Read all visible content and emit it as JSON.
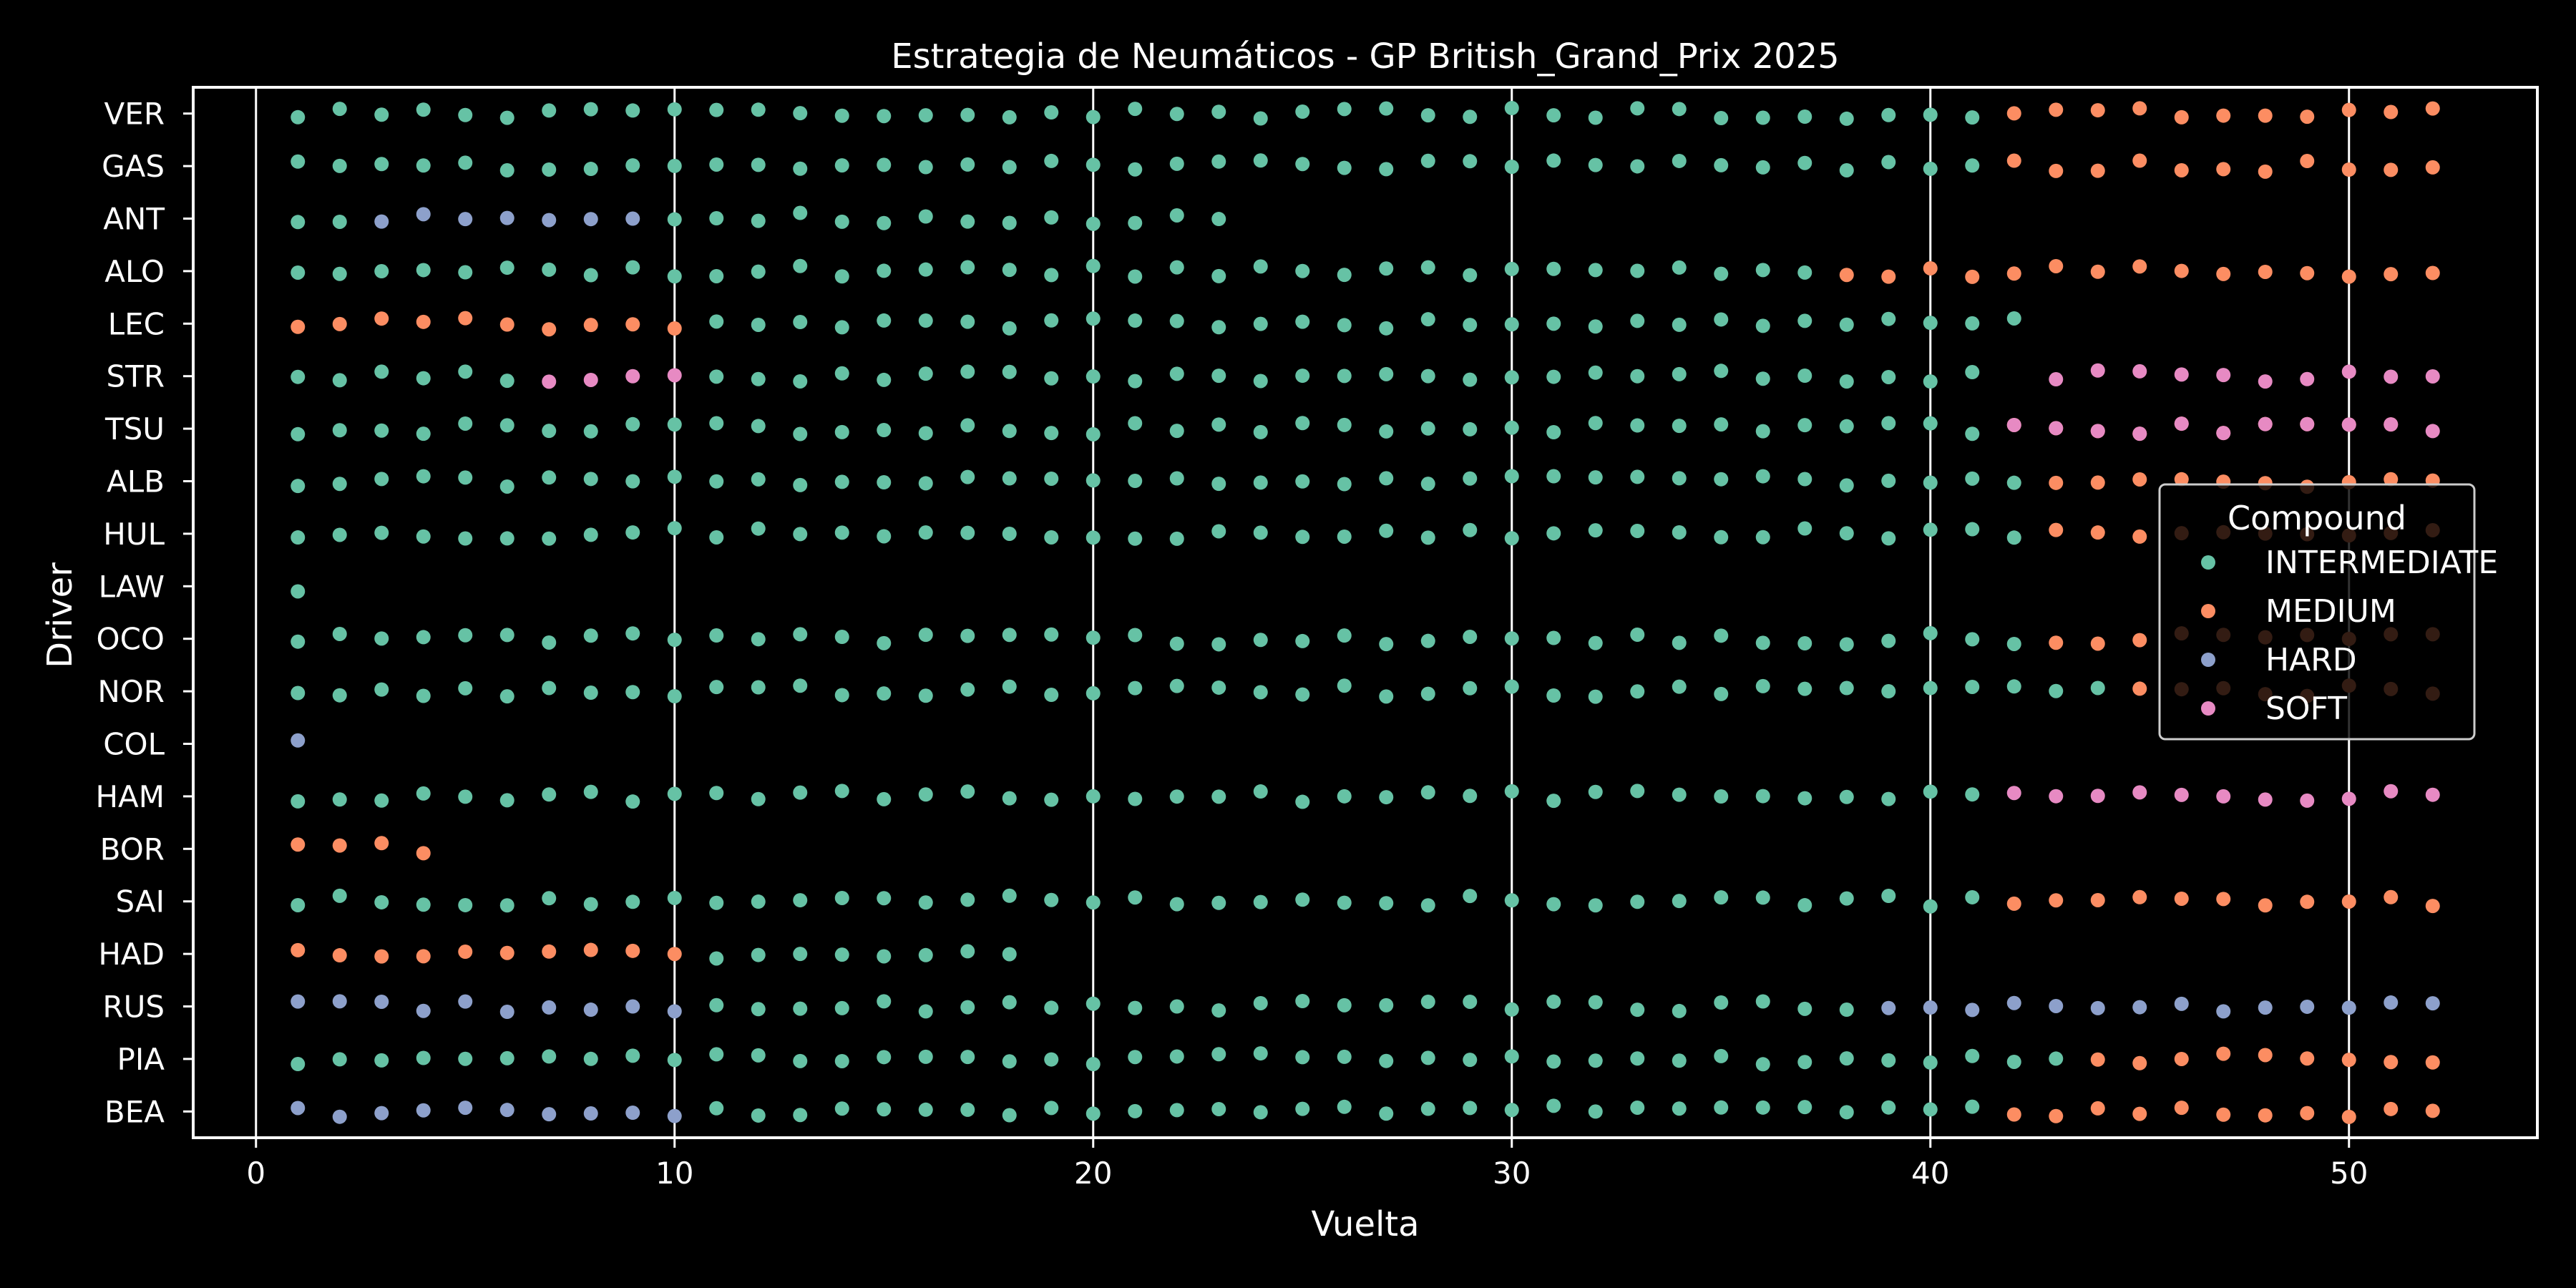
{
  "chart_data": {
    "type": "scatter",
    "title": "Estrategia de Neumáticos - GP British_Grand_Prix 2025",
    "xlabel": "Vuelta",
    "ylabel": "Driver",
    "xlim": [
      -1.5,
      54.5
    ],
    "xticks": [
      0,
      10,
      20,
      30,
      40,
      50
    ],
    "grid_x": true,
    "legend_title": "Compound",
    "legend_position": "right",
    "drivers": [
      "VER",
      "GAS",
      "ANT",
      "ALO",
      "LEC",
      "STR",
      "TSU",
      "ALB",
      "HUL",
      "LAW",
      "OCO",
      "NOR",
      "COL",
      "HAM",
      "BOR",
      "SAI",
      "HAD",
      "RUS",
      "PIA",
      "BEA"
    ],
    "compound_colors": {
      "INTERMEDIATE": "#66c2a5",
      "MEDIUM": "#fc8d62",
      "HARD": "#8da0cb",
      "SOFT": "#e78ac3"
    },
    "series": [
      {
        "name": "INTERMEDIATE",
        "points": [
          [
            "VER",
            1,
            41
          ],
          [
            "GAS",
            1,
            41
          ],
          [
            "ANT",
            1,
            2
          ],
          [
            "ANT",
            10,
            23
          ],
          [
            "ALO",
            1,
            37
          ],
          [
            "LEC",
            11,
            42
          ],
          [
            "STR",
            1,
            6
          ],
          [
            "STR",
            11,
            41
          ],
          [
            "TSU",
            1,
            41
          ],
          [
            "ALB",
            1,
            42
          ],
          [
            "HUL",
            1,
            42
          ],
          [
            "LAW",
            1,
            1
          ],
          [
            "OCO",
            1,
            42
          ],
          [
            "NOR",
            1,
            44
          ],
          [
            "HAM",
            1,
            41
          ],
          [
            "SAI",
            1,
            41
          ],
          [
            "HAD",
            11,
            18
          ],
          [
            "RUS",
            11,
            38
          ],
          [
            "PIA",
            1,
            43
          ],
          [
            "BEA",
            11,
            41
          ]
        ]
      },
      {
        "name": "MEDIUM",
        "points": [
          [
            "VER",
            42,
            52
          ],
          [
            "GAS",
            42,
            52
          ],
          [
            "ALO",
            38,
            52
          ],
          [
            "LEC",
            1,
            10
          ],
          [
            "TSU",
            42,
            51
          ],
          [
            "ALB",
            43,
            52
          ],
          [
            "HUL",
            43,
            52
          ],
          [
            "OCO",
            43,
            52
          ],
          [
            "NOR",
            45,
            52
          ],
          [
            "BOR",
            1,
            4
          ],
          [
            "SAI",
            42,
            52
          ],
          [
            "HAD",
            1,
            10
          ],
          [
            "PIA",
            44,
            52
          ],
          [
            "BEA",
            42,
            52
          ]
        ]
      },
      {
        "name": "HARD",
        "points": [
          [
            "ANT",
            3,
            9
          ],
          [
            "COL",
            1,
            1
          ],
          [
            "RUS",
            1,
            10
          ],
          [
            "RUS",
            39,
            52
          ],
          [
            "BEA",
            1,
            10
          ]
        ]
      },
      {
        "name": "SOFT",
        "points": [
          [
            "STR",
            7,
            10
          ],
          [
            "STR",
            43,
            52
          ],
          [
            "TSU",
            42,
            52
          ],
          [
            "HAM",
            42,
            52
          ]
        ]
      }
    ]
  }
}
